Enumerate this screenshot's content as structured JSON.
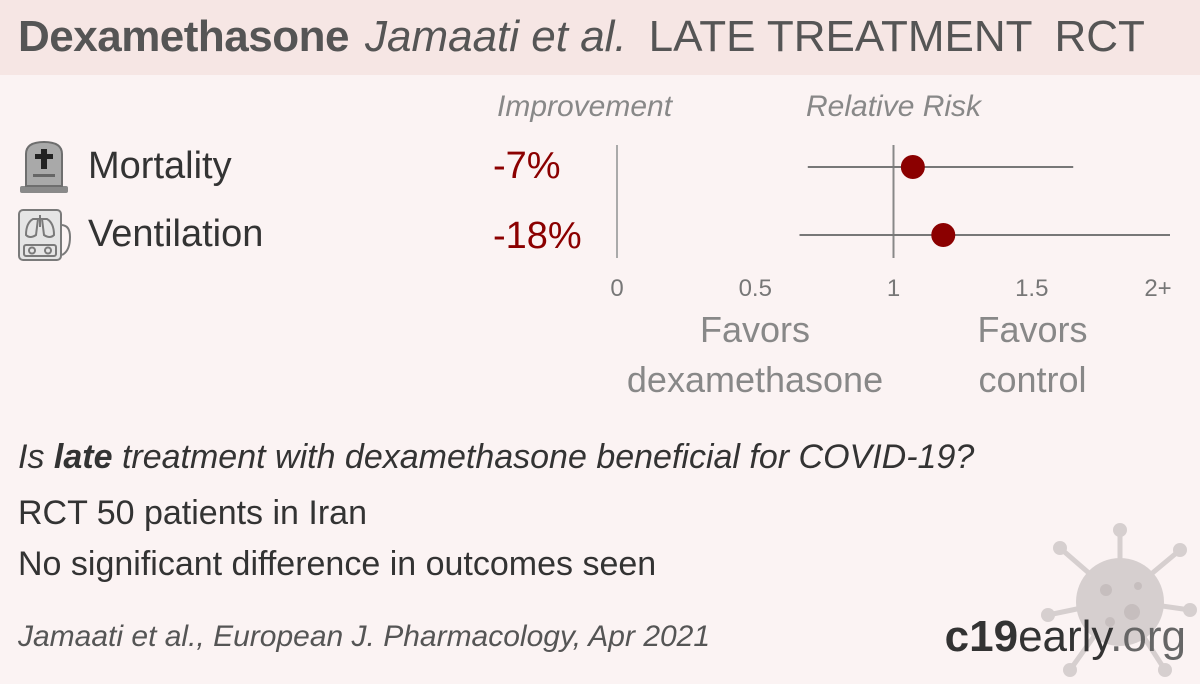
{
  "header": {
    "drug": "Dexamethasone",
    "authors": "Jamaati et al.",
    "treatment": "LATE TREATMENT",
    "design": "RCT"
  },
  "columns": {
    "improvement": "Improvement",
    "relative_risk": "Relative Risk"
  },
  "outcomes": [
    {
      "label": "Mortality",
      "improvement": "-7%",
      "icon": "tombstone-icon"
    },
    {
      "label": "Ventilation",
      "improvement": "-18%",
      "icon": "ventilator-icon"
    }
  ],
  "favors": {
    "left_line1": "Favors",
    "left_line2": "dexamethasone",
    "right_line1": "Favors",
    "right_line2": "control"
  },
  "summary": {
    "question_pre": "Is ",
    "question_bold": "late",
    "question_post": " treatment with dexamethasone beneficial for COVID-19?",
    "line2": "RCT 50 patients in Iran",
    "line3": "No significant difference in outcomes seen"
  },
  "citation": "Jamaati et al., European J. Pharmacology, Apr 2021",
  "brand": {
    "part1": "c19",
    "part2": "early",
    "part3": ".org"
  },
  "colors": {
    "point": "#8b0000",
    "value_text": "#8b0000",
    "line": "#777777",
    "background": "#fbf3f3",
    "header_bg": "#f6e6e4"
  },
  "chart_data": {
    "type": "forest",
    "x_ticks": [
      "0",
      "0.5",
      "1",
      "1.5",
      "2+"
    ],
    "xlim": [
      0,
      2
    ],
    "reference_line": 1,
    "series": [
      {
        "outcome": "Mortality",
        "rr": 1.07,
        "ci_low": 0.69,
        "ci_high": 1.65
      },
      {
        "outcome": "Ventilation",
        "rr": 1.18,
        "ci_low": 0.66,
        "ci_high": 2.0
      }
    ]
  }
}
